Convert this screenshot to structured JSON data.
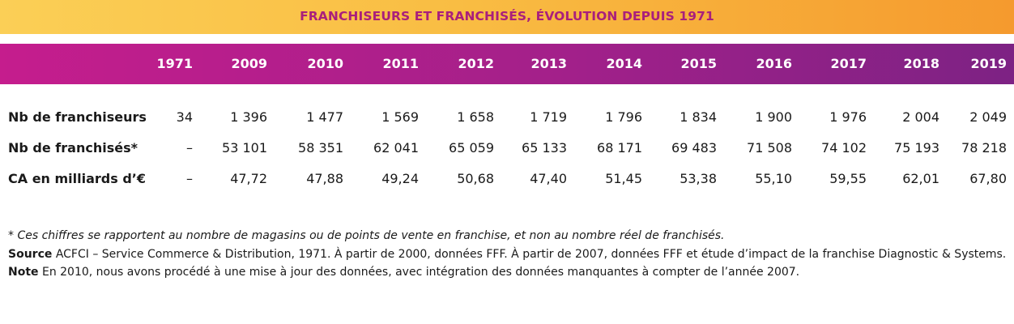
{
  "chart_data": {
    "type": "table",
    "title": "FRANCHISEURS ET FRANCHISÉS, ÉVOLUTION DEPUIS 1971",
    "columns": [
      "1971",
      "2009",
      "2010",
      "2011",
      "2012",
      "2013",
      "2014",
      "2015",
      "2016",
      "2017",
      "2018",
      "2019"
    ],
    "rows": [
      {
        "label": "Nb de franchiseurs",
        "values": [
          "34",
          "1 396",
          "1 477",
          "1 569",
          "1 658",
          "1 719",
          "1 796",
          "1 834",
          "1 900",
          "1 976",
          "2 004",
          "2 049"
        ]
      },
      {
        "label": "Nb de franchisés*",
        "values": [
          "–",
          "53 101",
          "58 351",
          "62 041",
          "65 059",
          "65 133",
          "68 171",
          "69 483",
          "71 508",
          "74 102",
          "75 193",
          "78 218"
        ]
      },
      {
        "label": "CA en milliards d’€",
        "values": [
          "–",
          "47,72",
          "47,88",
          "49,24",
          "50,68",
          "47,40",
          "51,45",
          "53,38",
          "55,10",
          "59,55",
          "62,01",
          "67,80"
        ]
      }
    ]
  },
  "notes": {
    "asterisk": "* Ces chiffres se rapportent au nombre de magasins ou de points de vente en franchise, et non au nombre réel de franchisés.",
    "source_label": "Source",
    "source_text": " ACFCI – Service Commerce & Distribution, 1971. À partir de 2000, données FFF. À partir de 2007, données FFF et étude d’impact de la franchise Diagnostic & Systems.",
    "note_label": "Note",
    "note_text": " En 2010, nous avons procédé à une mise à jour des données, avec intégration des données manquantes à compter de l’année 2007."
  },
  "colors": {
    "title_text": "#a91f7c",
    "title_bar": "#f9bd43",
    "header_bar": "#a3208a",
    "header_text": "#ffffff"
  }
}
